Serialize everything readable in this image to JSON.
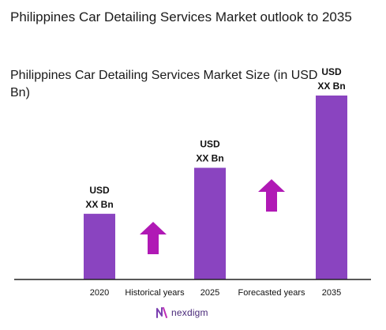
{
  "header": {
    "title": "Philippines Car Detailing Services Market outlook to 2035",
    "subtitle": "Philippines Car Detailing Services Market Size (in USD Bn)"
  },
  "chart_data": {
    "type": "bar",
    "title": "Philippines Car Detailing Services Market Size (in USD Bn)",
    "categories": [
      "2020",
      "2025",
      "2035"
    ],
    "values": [
      1.0,
      1.7,
      2.8
    ],
    "value_labels": [
      [
        "USD",
        "XX Bn"
      ],
      [
        "USD",
        "XX Bn"
      ],
      [
        "USD",
        "XX Bn"
      ]
    ],
    "segment_labels": [
      "Historical years",
      "Forecasted years"
    ],
    "xlabel": "",
    "ylabel": "",
    "ylim": [
      0,
      2.8
    ],
    "grid": false,
    "colors": {
      "bar": "#8a44c0",
      "arrow": "#b019b5",
      "axis": "#222222"
    }
  },
  "brand": {
    "name": "nexdigm",
    "color": "#4a2a7a"
  }
}
